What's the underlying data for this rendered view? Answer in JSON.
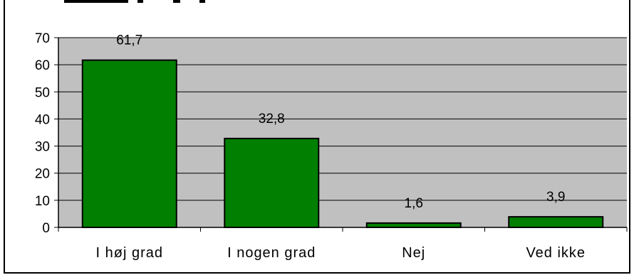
{
  "chart_data": {
    "type": "bar",
    "categories": [
      "I høj grad",
      "I nogen grad",
      "Nej",
      "Ved ikke"
    ],
    "values": [
      61.7,
      32.8,
      1.6,
      3.9
    ],
    "data_labels": [
      "61,7",
      "32,8",
      "1,6",
      "3,9"
    ],
    "y_ticks": [
      0,
      10,
      20,
      30,
      40,
      50,
      60,
      70
    ],
    "ylim": [
      0,
      70
    ],
    "grid": true,
    "legend": "none",
    "colors": {
      "bar_fill": "#007f00",
      "bar_stroke": "#000000",
      "plot_background": "#c0c0c0",
      "gridline": "#000000"
    }
  }
}
